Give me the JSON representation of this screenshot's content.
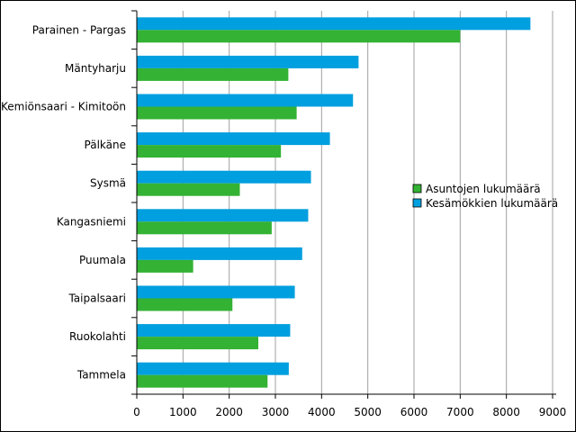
{
  "chart_data": {
    "type": "bar",
    "orientation": "horizontal",
    "categories": [
      "Parainen - Pargas",
      "Mäntyharju",
      "Kemiönsaari - Kimitoön",
      "Pälkäne",
      "Sysmä",
      "Kangasniemi",
      "Puumala",
      "Taipalsaari",
      "Ruokolahti",
      "Tammela"
    ],
    "series": [
      {
        "name": "Kesämökkien lukumäärä",
        "color": "#009fdf",
        "values": [
          8520,
          4800,
          4680,
          4180,
          3770,
          3710,
          3580,
          3420,
          3320,
          3290
        ]
      },
      {
        "name": "Asuntojen lukumäärä",
        "color": "#33b233",
        "values": [
          7000,
          3280,
          3460,
          3120,
          2230,
          2920,
          1220,
          2070,
          2630,
          2830
        ]
      }
    ],
    "xlim": [
      0,
      9000
    ],
    "xticks": [
      0,
      1000,
      2000,
      3000,
      4000,
      5000,
      6000,
      7000,
      8000,
      9000
    ],
    "grid": "vertical",
    "legend_position": "right",
    "legend_order": [
      "Asuntojen lukumäärä",
      "Kesämökkien lukumäärä"
    ],
    "title": "",
    "xlabel": "",
    "ylabel": ""
  }
}
